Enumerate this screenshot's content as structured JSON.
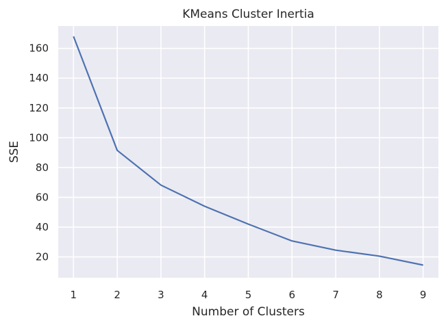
{
  "chart_data": {
    "type": "line",
    "title": "KMeans Cluster Inertia",
    "xlabel": "Number of Clusters",
    "ylabel": "SSE",
    "x": [
      1,
      2,
      3,
      4,
      5,
      6,
      7,
      8,
      9
    ],
    "series": [
      {
        "values": [
          168,
          91.5,
          68.2,
          54,
          42,
          30.7,
          24.5,
          20.5,
          14.5
        ]
      }
    ],
    "xlim": [
      0.65,
      9.35
    ],
    "ylim": [
      6,
      175
    ],
    "xticks": [
      1,
      2,
      3,
      4,
      5,
      6,
      7,
      8,
      9
    ],
    "yticks": [
      20,
      40,
      60,
      80,
      100,
      120,
      140,
      160
    ],
    "grid": true,
    "colors": {
      "plot_background": "#eaeaf2",
      "grid": "#ffffff",
      "line": "#4c72b0",
      "text": "#262626"
    }
  }
}
